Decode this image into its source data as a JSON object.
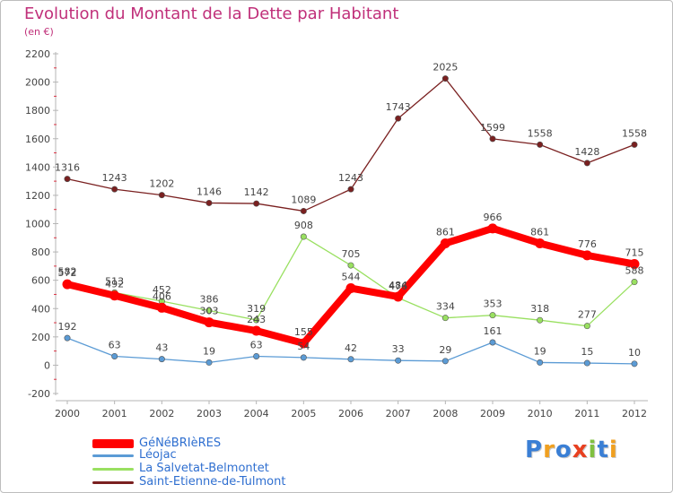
{
  "header": {
    "title": "Evolution du Montant de la Dette par Habitant",
    "unit": "(en €)"
  },
  "colors": {
    "title": "#c0307a",
    "legend_text": "#2f6fd0",
    "axis": "#bbbbbb"
  },
  "chart_data": {
    "type": "line",
    "title": "Evolution du Montant de la Dette par Habitant",
    "ylabel": "(en €)",
    "xlabel": "",
    "ylim": [
      -200,
      2200
    ],
    "yticks": [
      -200,
      0,
      200,
      400,
      600,
      800,
      1000,
      1200,
      1400,
      1600,
      1800,
      2000,
      2200
    ],
    "x": [
      "2000",
      "2001",
      "2002",
      "2003",
      "2004",
      "2005",
      "2006",
      "2007",
      "2008",
      "2009",
      "2010",
      "2011",
      "2012"
    ],
    "grid": false,
    "legend_position": "bottom-left",
    "series": [
      {
        "name": "GéNéBRIèRES",
        "color": "#ff0000",
        "weight": "heavy",
        "values": [
          572,
          492,
          406,
          303,
          243,
          155,
          544,
          484,
          861,
          966,
          861,
          776,
          715
        ],
        "labels": [
          "572",
          "492",
          "406",
          "303",
          "243",
          "155",
          "544",
          "484",
          "861",
          "966",
          "861",
          "776",
          "715"
        ]
      },
      {
        "name": "Léojac",
        "color": "#5b9bd5",
        "weight": "thin",
        "values": [
          192,
          63,
          43,
          19,
          63,
          54,
          42,
          33,
          29,
          161,
          19,
          15,
          10
        ],
        "labels": [
          "192",
          "63",
          "43",
          "19",
          "63",
          "54",
          "42",
          "33",
          "29",
          "161",
          "19",
          "15",
          "10"
        ]
      },
      {
        "name": "La Salvetat-Belmontet",
        "color": "#99e060",
        "weight": "thin",
        "values": [
          582,
          513,
          452,
          386,
          319,
          908,
          705,
          476,
          334,
          353,
          318,
          277,
          588
        ],
        "labels": [
          "582",
          "513",
          "452",
          "386",
          "319",
          "908",
          "705",
          "476",
          "334",
          "353",
          "318",
          "277",
          "588"
        ]
      },
      {
        "name": "Saint-Etienne-de-Tulmont",
        "color": "#7a2020",
        "weight": "thin",
        "values": [
          1316,
          1243,
          1202,
          1146,
          1142,
          1089,
          1243,
          1743,
          2025,
          1599,
          1558,
          1428,
          1558
        ],
        "labels": [
          "1316",
          "1243",
          "1202",
          "1146",
          "1142",
          "1089",
          "1243",
          "1743",
          "2025",
          "1599",
          "1558",
          "1428",
          "1558"
        ]
      }
    ]
  },
  "legend": {
    "items": [
      {
        "label": "GéNéBRIèRES",
        "color": "#ff0000"
      },
      {
        "label": "Léojac",
        "color": "#5b9bd5"
      },
      {
        "label": "La Salvetat-Belmontet",
        "color": "#99e060"
      },
      {
        "label": "Saint-Etienne-de-Tulmont",
        "color": "#7a2020"
      }
    ]
  },
  "logo": {
    "letters": [
      "P",
      "r",
      "o",
      "x",
      "i",
      "t",
      "i"
    ],
    "colors": [
      "#3a7fd5",
      "#f0a020",
      "#3a7fd5",
      "#e84020",
      "#80c040",
      "#3a7fd5",
      "#f0a020"
    ]
  }
}
